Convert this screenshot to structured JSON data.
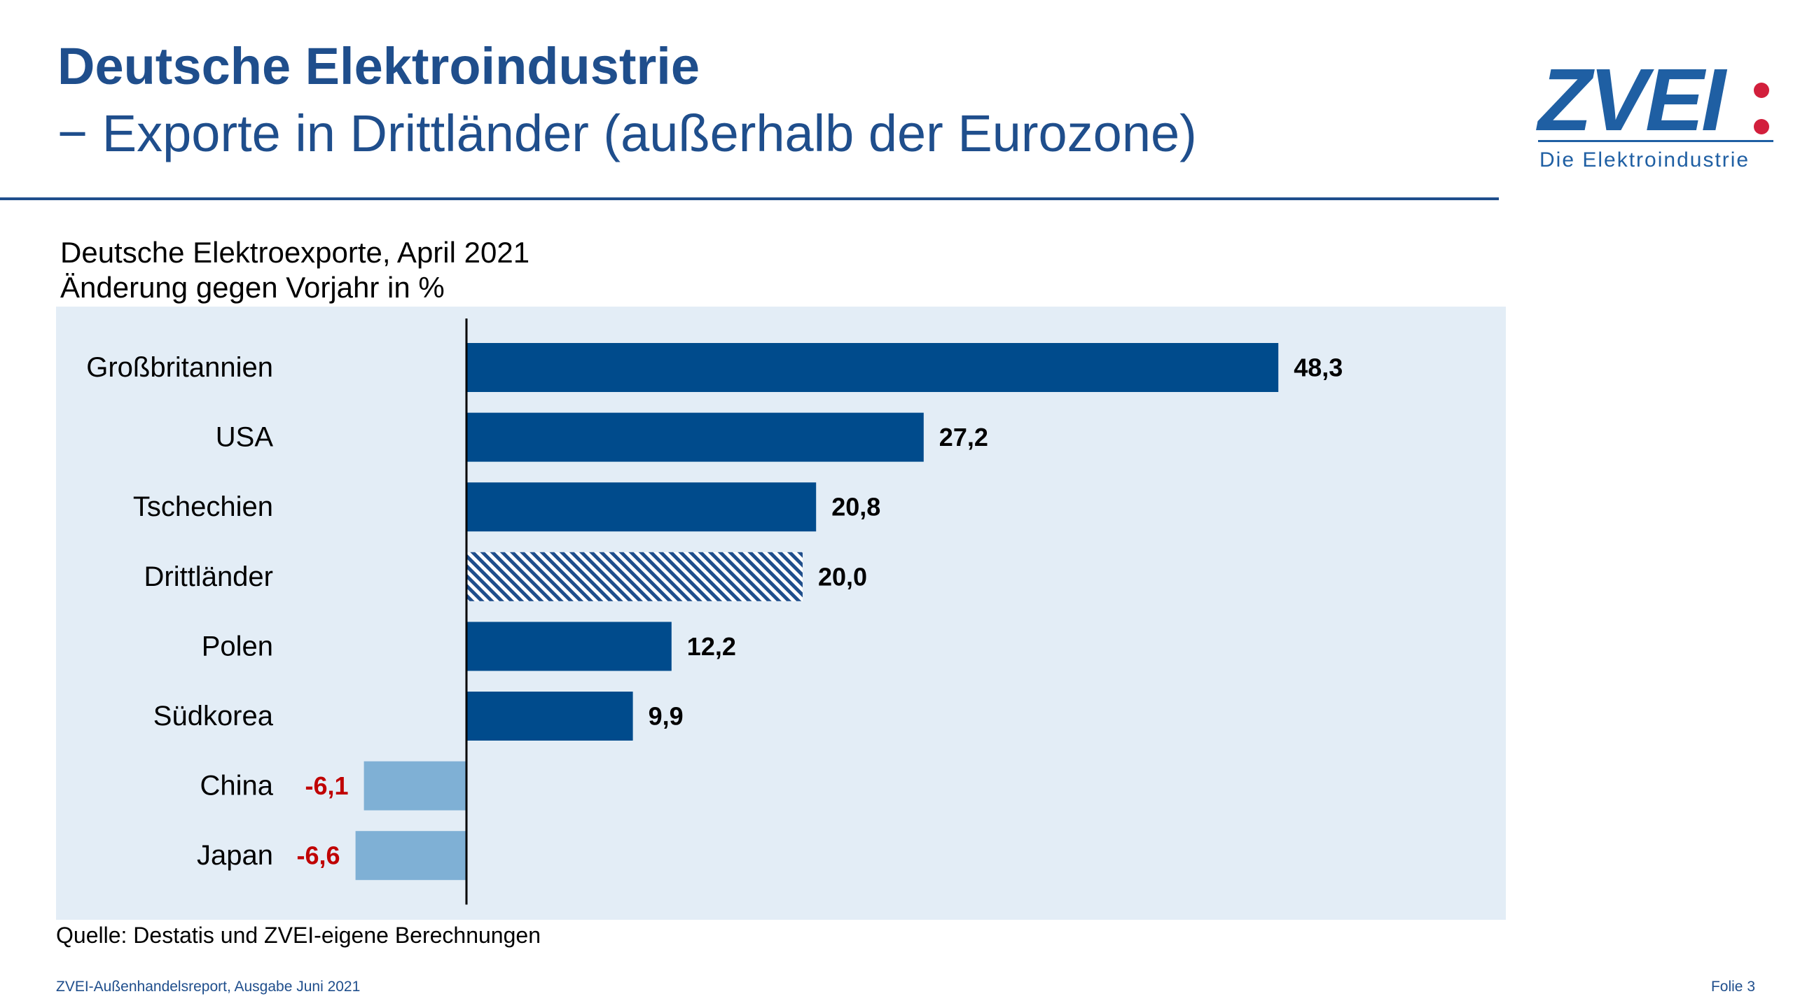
{
  "header": {
    "title_line1": "Deutsche Elektroindustrie",
    "title_line2": "− Exporte in Drittländer (außerhalb der Eurozone)"
  },
  "logo": {
    "wordmark": "ZVEI",
    "subtitle": "Die Elektroindustrie"
  },
  "chart_data": {
    "type": "bar",
    "orientation": "horizontal",
    "title": "Deutsche Elektroexporte, April 2021",
    "subtitle": "Änderung gegen Vorjahr in %",
    "categories": [
      "Großbritannien",
      "USA",
      "Tschechien",
      "Drittländer",
      "Polen",
      "Südkorea",
      "China",
      "Japan"
    ],
    "values": [
      48.3,
      27.2,
      20.8,
      20.0,
      12.2,
      9.9,
      -6.1,
      -6.6
    ],
    "value_labels": [
      "48,3",
      "27,2",
      "20,8",
      "20,0",
      "12,2",
      "9,9",
      "-6,1",
      "-6,6"
    ],
    "highlight_category": "Drittländer",
    "xlim": [
      -8,
      55
    ],
    "grid": false,
    "legend": "none",
    "colors": {
      "positive": "#004b8c",
      "negative": "#7fb0d5",
      "hatch": "#1f4e8c",
      "label_positive": "#000000",
      "label_negative": "#c00000",
      "panel": "#e3edf6"
    }
  },
  "source": "Quelle: Destatis und ZVEI-eigene Berechnungen",
  "footer": {
    "left": "ZVEI-Außenhandelsreport, Ausgabe Juni 2021",
    "right": "Folie 3"
  }
}
